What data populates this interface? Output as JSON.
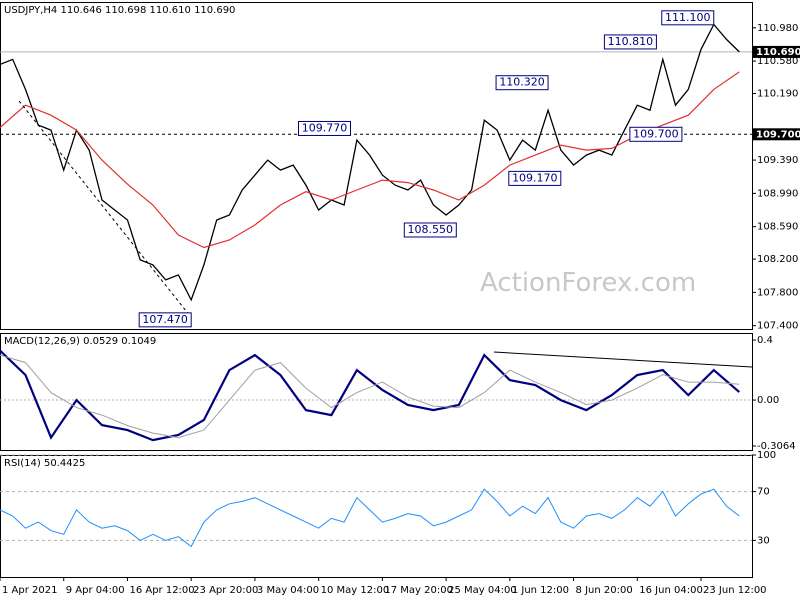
{
  "chart_data": [
    {
      "type": "line",
      "title": "USDJPY,H4  110.646 110.698 110.610 110.690",
      "watermark": "ActionForex.com",
      "xlim": [
        0,
        118
      ],
      "ylim": [
        107.36,
        111.29
      ],
      "yticks": [
        {
          "value": 110.98,
          "label": "110.980"
        },
        {
          "value": 110.58,
          "label": "110.580"
        },
        {
          "value": 110.19,
          "label": "110.190"
        },
        {
          "value": 109.39,
          "label": "109.390"
        },
        {
          "value": 108.99,
          "label": "108.990"
        },
        {
          "value": 108.59,
          "label": "108.590"
        },
        {
          "value": 108.2,
          "label": "108.200"
        },
        {
          "value": 107.8,
          "label": "107.800"
        },
        {
          "value": 107.4,
          "label": "107.400"
        }
      ],
      "hlines": [
        {
          "value": 110.69,
          "label": "110.690",
          "color": "#b4b4b4",
          "dashed": false
        },
        {
          "value": 109.7,
          "label": "109.700",
          "color": "#000000",
          "dashed": true
        }
      ],
      "series": [
        {
          "name": "USDJPY",
          "color": "#000000",
          "width": 1.3,
          "x": [
            0,
            2,
            4,
            6,
            8,
            10,
            12,
            14,
            16,
            18,
            20,
            22,
            24,
            26,
            28,
            30,
            32,
            34,
            36,
            38,
            40,
            42,
            44,
            46,
            48,
            50,
            52,
            54,
            56,
            58,
            60,
            62,
            64,
            66,
            68,
            70,
            72,
            74,
            76,
            78,
            80,
            82,
            84,
            86,
            88,
            90,
            92,
            94,
            96,
            98,
            100,
            102,
            104,
            106,
            108,
            110,
            112,
            114,
            116
          ],
          "values": [
            110.54,
            110.6,
            110.24,
            109.81,
            109.75,
            109.27,
            109.75,
            109.51,
            108.91,
            108.79,
            108.67,
            108.19,
            108.13,
            107.95,
            108.01,
            107.71,
            108.13,
            108.67,
            108.73,
            109.03,
            109.21,
            109.39,
            109.27,
            109.33,
            109.09,
            108.79,
            108.91,
            108.85,
            109.63,
            109.45,
            109.21,
            109.09,
            109.03,
            109.15,
            108.85,
            108.73,
            108.85,
            109.03,
            109.87,
            109.75,
            109.39,
            109.63,
            109.51,
            109.99,
            109.51,
            109.33,
            109.45,
            109.51,
            109.45,
            109.75,
            110.05,
            109.99,
            110.6,
            110.05,
            110.24,
            110.72,
            111.02,
            110.84,
            110.69
          ]
        },
        {
          "color": "#e03030",
          "width": 1.2,
          "x": [
            0,
            4,
            8,
            12,
            16,
            20,
            24,
            28,
            32,
            36,
            40,
            44,
            48,
            52,
            56,
            60,
            64,
            68,
            72,
            76,
            80,
            84,
            88,
            92,
            96,
            100,
            104,
            108,
            112,
            116
          ],
          "values": [
            109.78,
            110.05,
            109.93,
            109.75,
            109.39,
            109.1,
            108.85,
            108.49,
            108.34,
            108.43,
            108.61,
            108.85,
            109.01,
            108.91,
            109.03,
            109.15,
            109.12,
            109.03,
            108.91,
            109.09,
            109.33,
            109.45,
            109.57,
            109.51,
            109.53,
            109.69,
            109.81,
            109.93,
            110.24,
            110.45
          ]
        }
      ],
      "trendlines": [
        {
          "x": [
            3,
            30
          ],
          "values": [
            110.1,
            107.5
          ],
          "color": "#000000",
          "dashed": true
        }
      ],
      "annotations": [
        {
          "x": 112,
          "value": 111.1,
          "label": "111.100"
        },
        {
          "x": 103,
          "value": 110.81,
          "label": "110.810"
        },
        {
          "x": 86,
          "value": 110.32,
          "label": "110.320"
        },
        {
          "x": 55,
          "value": 109.77,
          "label": "109.770"
        },
        {
          "x": 107,
          "value": 109.7,
          "label": "109.700"
        },
        {
          "x": 88,
          "value": 109.17,
          "label": "109.170"
        },
        {
          "x": 71.6,
          "value": 108.55,
          "label": "108.550"
        },
        {
          "x": 30,
          "value": 107.47,
          "label": "107.470"
        }
      ]
    },
    {
      "type": "line",
      "title": "MACD(12,26,9) 0.0529 0.1049",
      "xlim": [
        0,
        118
      ],
      "ylim": [
        -0.333,
        0.447
      ],
      "yticks": [
        0.4,
        {
          "value": 0,
          "label": "0.00"
        },
        -0.3064
      ],
      "zero_line": true,
      "series": [
        {
          "color": "#000080",
          "width": 2.2,
          "x": [
            0,
            4,
            8,
            12,
            16,
            20,
            24,
            28,
            32,
            36,
            40,
            44,
            48,
            52,
            56,
            60,
            64,
            68,
            72,
            76,
            80,
            84,
            88,
            92,
            96,
            100,
            104,
            108,
            112,
            116
          ],
          "values": [
            0.33,
            0.167,
            -0.25,
            0,
            -0.167,
            -0.2,
            -0.267,
            -0.233,
            -0.133,
            0.2,
            0.3,
            0.167,
            -0.067,
            -0.1,
            0.2,
            0.067,
            -0.033,
            -0.067,
            -0.033,
            0.3,
            0.133,
            0.1,
            0,
            -0.067,
            0.033,
            0.167,
            0.2,
            0.033,
            0.2,
            0.053
          ]
        },
        {
          "color": "#a0a0a0",
          "width": 1,
          "x": [
            0,
            4,
            8,
            12,
            16,
            20,
            24,
            28,
            32,
            36,
            40,
            44,
            48,
            52,
            56,
            60,
            64,
            68,
            72,
            76,
            80,
            84,
            88,
            92,
            96,
            100,
            104,
            108,
            112,
            116
          ],
          "values": [
            0.3,
            0.25,
            0.05,
            -0.05,
            -0.1,
            -0.17,
            -0.22,
            -0.25,
            -0.2,
            0,
            0.2,
            0.25,
            0.08,
            -0.05,
            0.05,
            0.12,
            0.02,
            -0.04,
            -0.05,
            0.05,
            0.2,
            0.12,
            0.05,
            -0.03,
            0,
            0.08,
            0.17,
            0.12,
            0.12,
            0.105
          ]
        }
      ],
      "trendlines": [
        {
          "x": [
            77.5,
            118
          ],
          "values": [
            0.32,
            0.22
          ],
          "color": "#000000",
          "dashed": false
        }
      ]
    },
    {
      "type": "line",
      "title": "RSI(14) 50.4425",
      "xlim": [
        0,
        118
      ],
      "ylim": [
        0,
        100
      ],
      "yticks": [
        100,
        70,
        30
      ],
      "grid": true,
      "xticks": [
        {
          "value": 0,
          "label": "1 Apr 2021"
        },
        {
          "value": 10,
          "label": "9 Apr 04:00"
        },
        {
          "value": 20,
          "label": "16 Apr 12:00"
        },
        {
          "value": 30,
          "label": "23 Apr 20:00"
        },
        {
          "value": 40,
          "label": "3 May 04:00"
        },
        {
          "value": 50,
          "label": "10 May 12:00"
        },
        {
          "value": 60,
          "label": "17 May 20:00"
        },
        {
          "value": 70,
          "label": "25 May 04:00"
        },
        {
          "value": 80,
          "label": "1 Jun 12:00"
        },
        {
          "value": 90,
          "label": "8 Jun 20:00"
        },
        {
          "value": 100,
          "label": "16 Jun 04:00"
        },
        {
          "value": 110,
          "label": "23 Jun 12:00"
        }
      ],
      "series": [
        {
          "color": "#1e90ff",
          "width": 1,
          "x": [
            0,
            2,
            4,
            6,
            8,
            10,
            12,
            14,
            16,
            18,
            20,
            22,
            24,
            26,
            28,
            30,
            32,
            34,
            36,
            38,
            40,
            42,
            44,
            46,
            48,
            50,
            52,
            54,
            56,
            58,
            60,
            62,
            64,
            66,
            68,
            70,
            72,
            74,
            76,
            78,
            80,
            82,
            84,
            86,
            88,
            90,
            92,
            94,
            96,
            98,
            100,
            102,
            104,
            106,
            108,
            110,
            112,
            114,
            116
          ],
          "values": [
            55,
            50,
            40,
            45,
            38,
            35,
            55,
            45,
            40,
            42,
            38,
            30,
            35,
            30,
            33,
            25,
            45,
            55,
            60,
            62,
            65,
            60,
            55,
            50,
            45,
            40,
            48,
            45,
            65,
            55,
            45,
            48,
            52,
            50,
            42,
            45,
            50,
            55,
            72,
            62,
            50,
            58,
            52,
            65,
            45,
            40,
            50,
            52,
            48,
            55,
            65,
            58,
            70,
            50,
            60,
            68,
            72,
            58,
            50
          ]
        }
      ]
    }
  ]
}
